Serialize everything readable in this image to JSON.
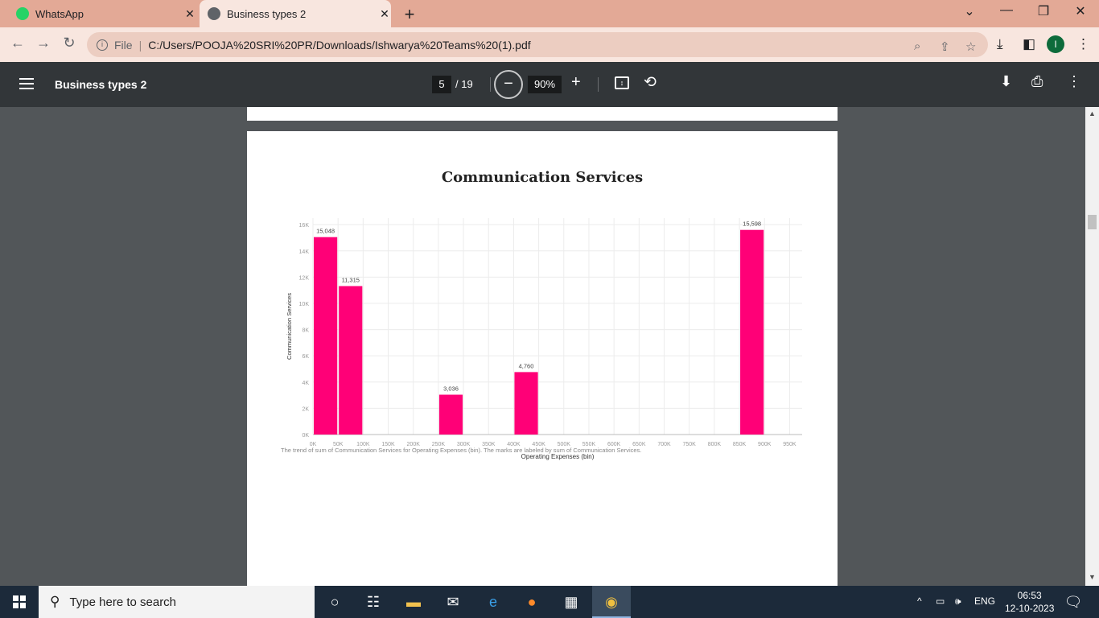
{
  "tabs": [
    {
      "title": "WhatsApp",
      "icon": "whatsapp-icon"
    },
    {
      "title": "Business types 2",
      "icon": "globe-icon"
    }
  ],
  "address": {
    "scheme_label": "File",
    "url": "C:/Users/POOJA%20SRI%20PR/Downloads/Ishwarya%20Teams%20(1).pdf"
  },
  "profile_initial": "I",
  "pdf_toolbar": {
    "title": "Business types 2",
    "current_page": "5",
    "total_pages": "/ 19",
    "zoom": "90%"
  },
  "chart_data": {
    "type": "bar",
    "title": "Communication Services",
    "xlabel": "Operating Expenses (bin)",
    "ylabel": "Communication Services",
    "caption": "The trend of sum of Communication Services for Operating Expenses (bin).  The marks are labeled by sum of Communication Services.",
    "x_ticks": [
      "0K",
      "50K",
      "100K",
      "150K",
      "200K",
      "250K",
      "300K",
      "350K",
      "400K",
      "450K",
      "500K",
      "550K",
      "600K",
      "650K",
      "700K",
      "750K",
      "800K",
      "850K",
      "900K",
      "950K"
    ],
    "y_ticks": [
      "0K",
      "2K",
      "4K",
      "6K",
      "8K",
      "10K",
      "12K",
      "14K",
      "16K"
    ],
    "ylim": [
      0,
      16500
    ],
    "xlim": [
      0,
      975000
    ],
    "bar_width": 50000,
    "bars": [
      {
        "x0": 0,
        "value": 15048,
        "label": "15,048"
      },
      {
        "x0": 50000,
        "value": 11315,
        "label": "11,315"
      },
      {
        "x0": 250000,
        "value": 3036,
        "label": "3,036"
      },
      {
        "x0": 400000,
        "value": 4760,
        "label": "4,760"
      },
      {
        "x0": 850000,
        "value": 15598,
        "label": "15,598"
      }
    ],
    "bar_color": "#ff0077",
    "grid": true
  },
  "taskbar": {
    "search_placeholder": "Type here to search",
    "language": "ENG",
    "time": "06:53",
    "date": "12-10-2023"
  }
}
